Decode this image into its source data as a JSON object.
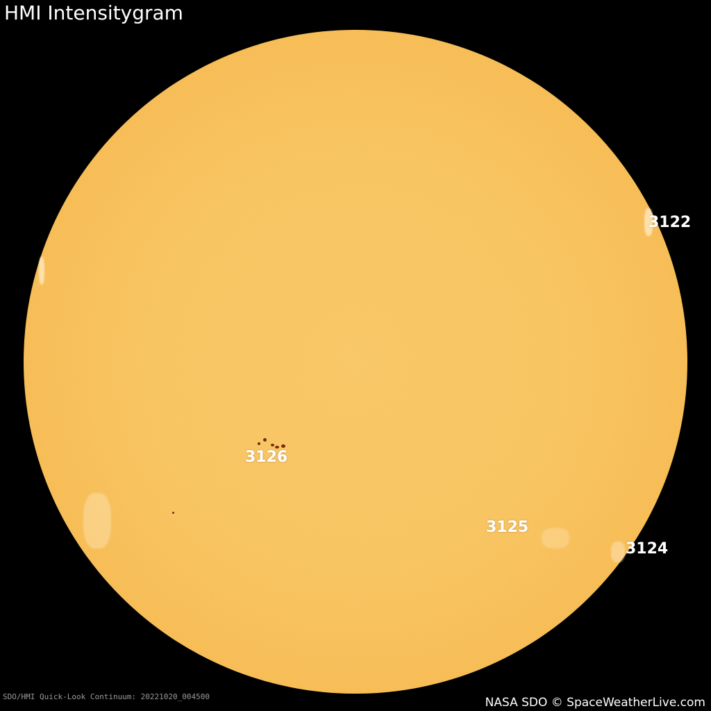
{
  "title": "HMI Intensitygram",
  "colors": {
    "sun": "#f8c25c",
    "limb": "#e9992f",
    "spot": "#7a2a10",
    "background": "#000000"
  },
  "regions": [
    {
      "id": "3122"
    },
    {
      "id": "3126"
    },
    {
      "id": "3125"
    },
    {
      "id": "3124"
    }
  ],
  "footer": {
    "caption": "SDO/HMI Quick-Look Continuum: 20221020_004500",
    "credit": "NASA SDO © SpaceWeatherLive.com"
  }
}
